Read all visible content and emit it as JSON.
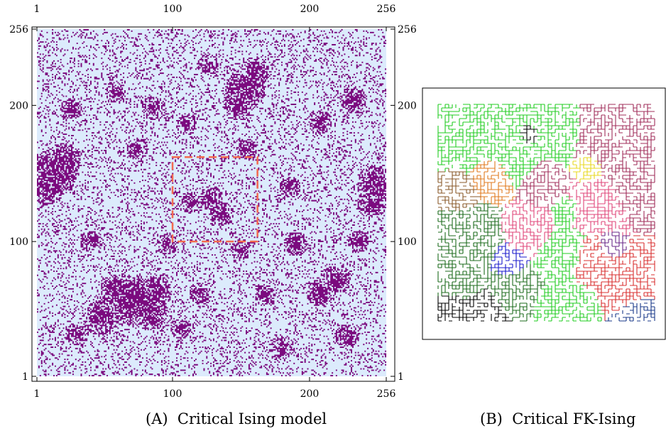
{
  "figure": {
    "panel_a": {
      "caption": {
        "label": "(A)",
        "text": "Critical Ising model"
      },
      "ticks": [
        "1",
        "100",
        "200",
        "256"
      ],
      "colors": {
        "spin_up": "#7b0a7e",
        "spin_down": "#dcebfc",
        "highlight_box": "#f26a4f"
      },
      "lattice_size": 256,
      "highlight_box_range": {
        "x": [
          100,
          162
        ],
        "y": [
          100,
          162
        ]
      }
    },
    "panel_b": {
      "caption": {
        "label": "(B)",
        "text": "Critical FK-Ising"
      },
      "cluster_colors": [
        "#000000",
        "#1d6b1d",
        "#22cc22",
        "#a02d5a",
        "#e0467a",
        "#e07a1e",
        "#e8d820",
        "#1a1acc",
        "#d83030",
        "#6a2a8a",
        "#8a5a2a",
        "#1a3a8a"
      ]
    }
  }
}
